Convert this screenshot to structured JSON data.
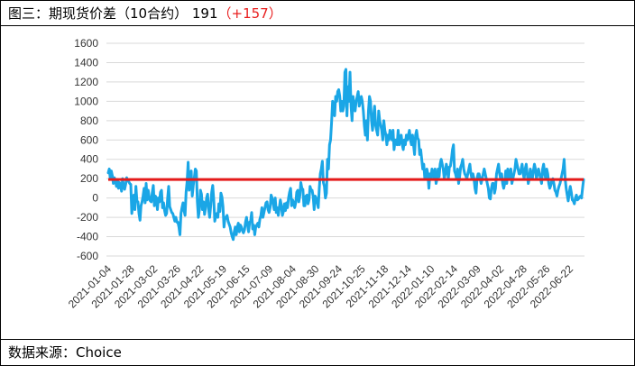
{
  "header": {
    "title": "图三：期现货价差（10合约）",
    "value": "191",
    "change": "（+157）"
  },
  "footer": {
    "source": "数据来源：Choice"
  },
  "colors": {
    "series": "#1aa6e6",
    "reference": "#e51a1a",
    "change": "#e81c1c",
    "grid": "#d9d9d9"
  },
  "chart_data": {
    "type": "line",
    "title": "图三：期现货价差（10合约）",
    "xlabel": "",
    "ylabel": "",
    "ylim": [
      -600,
      1600
    ],
    "yticks": [
      1600,
      1400,
      1200,
      1000,
      800,
      600,
      400,
      200,
      0,
      -200,
      -400,
      -600
    ],
    "grid": true,
    "legend": "none",
    "xticks": [
      "2021-01-04",
      "2021-01-28",
      "2021-03-02",
      "2021-03-26",
      "2021-04-22",
      "2021-05-19",
      "2021-06-15",
      "2021-07-09",
      "2021-08-04",
      "2021-08-30",
      "2021-09-24",
      "2021-10-25",
      "2021-11-18",
      "2021-12-14",
      "2022-01-10",
      "2022-02-14",
      "2022-03-09",
      "2022-04-02",
      "2022-04-28",
      "2022-05-26",
      "2022-06-22"
    ],
    "reference_line": 191,
    "series": [
      {
        "values": [
          260,
          300,
          200,
          280,
          230,
          150,
          210,
          180,
          120,
          190,
          100,
          160,
          130,
          70,
          200,
          120,
          90,
          140,
          210,
          180,
          170,
          150,
          140,
          -160,
          -50,
          30,
          -120,
          120,
          -30,
          -40,
          -160,
          -230,
          -80,
          -40,
          20,
          100,
          -50,
          150,
          -20,
          80,
          10,
          -30,
          -40,
          60,
          130,
          -80,
          20,
          0,
          -120,
          0,
          -40,
          60,
          80,
          -100,
          -50,
          -130,
          -180,
          -160,
          0,
          120,
          -90,
          -120,
          -150,
          -160,
          -200,
          -240,
          -200,
          -250,
          -250,
          -300,
          -380,
          -160,
          -100,
          -50,
          -130,
          -180,
          60,
          170,
          370,
          80,
          200,
          280,
          20,
          130,
          210,
          300,
          280,
          -40,
          -200,
          -120,
          80,
          40,
          -120,
          -40,
          -170,
          -100,
          0,
          40,
          -120,
          -200,
          -80,
          60,
          130,
          -20,
          -240,
          -180,
          -160,
          -200,
          -60,
          -140,
          50,
          10,
          -90,
          -300,
          -200,
          -210,
          -180,
          -240,
          -270,
          -300,
          -360,
          -400,
          -430,
          -350,
          -300,
          -380,
          -300,
          -260,
          -350,
          -280,
          -300,
          -340,
          -360,
          -330,
          -250,
          -200,
          -280,
          -350,
          -250,
          -240,
          -150,
          -320,
          -280,
          -380,
          -300,
          -280,
          -260,
          -300,
          -220,
          -180,
          -100,
          -200,
          -150,
          -100,
          -50,
          -40,
          -120,
          -150,
          -100,
          30,
          0,
          -60,
          -120,
          0,
          -150,
          -100,
          -180,
          -100,
          -20,
          -80,
          -180,
          -140,
          -60,
          -130,
          -50,
          -100,
          0,
          60,
          100,
          -80,
          -20,
          -50,
          -100,
          -50,
          60,
          80,
          -40,
          20,
          160,
          100,
          90,
          -80,
          -80,
          20,
          30,
          -60,
          -20,
          120,
          80,
          80,
          20,
          -120,
          20,
          0,
          -50,
          -100,
          100,
          250,
          300,
          380,
          160,
          120,
          0,
          50,
          400,
          300,
          550,
          600,
          780,
          1000,
          900,
          850,
          1050,
          1000,
          1100,
          1120,
          1050,
          900,
          1000,
          900,
          950,
          1300,
          1330,
          850,
          1150,
          1000,
          1300,
          950,
          800,
          1050,
          950,
          900,
          1000,
          1050,
          1100,
          950,
          1000,
          1050,
          1000,
          900,
          750,
          650,
          800,
          600,
          900,
          1050,
          1000,
          800,
          700,
          850,
          950,
          750,
          700,
          650,
          900,
          800,
          750,
          700,
          600,
          800,
          700,
          650,
          550,
          650,
          600,
          700,
          650,
          600,
          700,
          500,
          600,
          600,
          550,
          700,
          550,
          600,
          650,
          550,
          500,
          600,
          550,
          650,
          600,
          650,
          700,
          600,
          550,
          650,
          550,
          450,
          650,
          700,
          620,
          600,
          450,
          500,
          400,
          300,
          350,
          200,
          220,
          300,
          250,
          100,
          250,
          200,
          300,
          250,
          200,
          300,
          150,
          200,
          300,
          220,
          350,
          400,
          350,
          300,
          200,
          250,
          350,
          300,
          200,
          320,
          330,
          400,
          500,
          550,
          280,
          250,
          200,
          300,
          150,
          220,
          320,
          350,
          400,
          300,
          250,
          230,
          200,
          250,
          300,
          350,
          250,
          200,
          250,
          200,
          100,
          50,
          200,
          250,
          250,
          200,
          150,
          200,
          250,
          300,
          250,
          200,
          150,
          100,
          0,
          -10,
          100,
          150,
          150,
          50,
          100,
          250,
          300,
          350,
          250,
          200,
          250,
          150,
          100,
          150,
          280,
          150,
          300,
          200,
          250,
          300,
          150,
          200,
          250,
          300,
          400,
          350,
          300,
          250,
          250,
          300,
          350,
          250,
          200,
          300,
          350,
          250,
          150,
          200,
          300,
          250,
          200,
          280,
          350,
          300,
          200,
          250,
          300,
          250,
          200,
          150,
          300,
          350,
          250,
          200,
          300,
          250,
          150,
          100,
          130,
          180,
          200,
          150,
          80,
          60,
          20,
          80,
          120,
          150,
          200,
          250,
          300,
          400,
          200,
          100,
          30,
          -30,
          50,
          120,
          60,
          -20,
          -30,
          -60,
          0,
          30,
          -20,
          -10,
          10,
          20,
          0,
          100,
          190
        ]
      }
    ]
  }
}
